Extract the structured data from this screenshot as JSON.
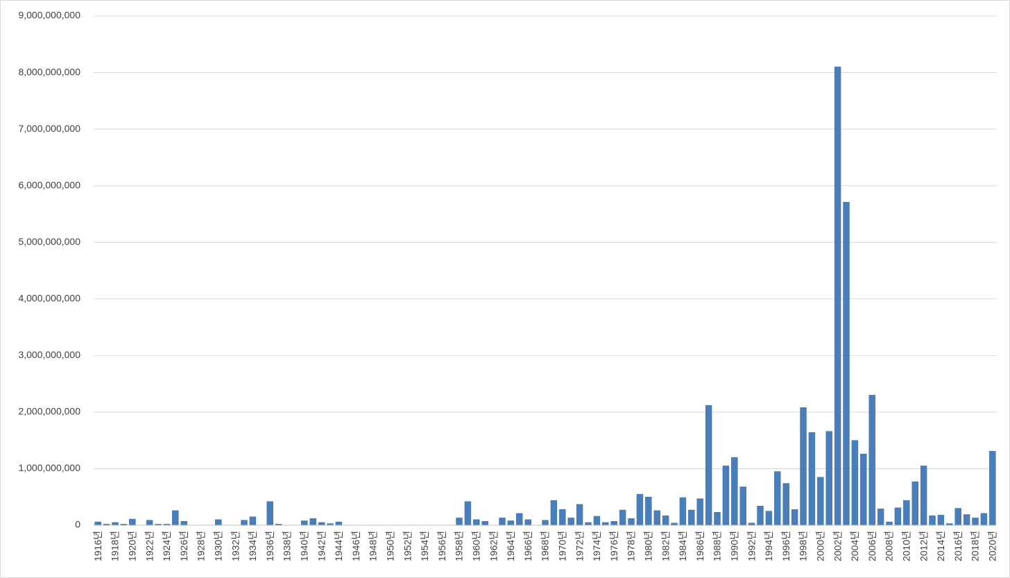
{
  "chart_data": {
    "type": "bar",
    "color": "#4a7ebb",
    "grid": true,
    "categories": [
      "1916년",
      null,
      "1918년",
      null,
      "1920년",
      null,
      "1922년",
      null,
      "1924년",
      null,
      "1926년",
      null,
      "1928년",
      null,
      "1930년",
      null,
      "1932년",
      null,
      "1934년",
      null,
      "1936년",
      null,
      "1938년",
      null,
      "1940년",
      null,
      "1942년",
      null,
      "1944년",
      null,
      "1946년",
      null,
      "1948년",
      null,
      "1950년",
      null,
      "1952년",
      null,
      "1954년",
      null,
      "1956년",
      null,
      "1958년",
      null,
      "1960년",
      null,
      "1962년",
      null,
      "1964년",
      null,
      "1966년",
      null,
      "1968년",
      null,
      "1970년",
      null,
      "1972년",
      null,
      "1974년",
      null,
      "1976년",
      null,
      "1978년",
      null,
      "1980년",
      null,
      "1982년",
      null,
      "1984년",
      null,
      "1986년",
      null,
      "1988년",
      null,
      "1990년",
      null,
      "1992년",
      null,
      "1994년",
      null,
      "1996년",
      null,
      "1998년",
      null,
      "2000년",
      null,
      "2002년",
      null,
      "2004년",
      null,
      "2006년",
      null,
      "2008년",
      null,
      "2010년",
      null,
      "2012년",
      null,
      "2014년",
      null,
      "2016년",
      null,
      "2018년",
      null,
      "2020년"
    ],
    "values": [
      60000000,
      20000000,
      50000000,
      20000000,
      110000000,
      0,
      90000000,
      20000000,
      20000000,
      260000000,
      70000000,
      0,
      0,
      0,
      100000000,
      0,
      0,
      90000000,
      150000000,
      0,
      420000000,
      20000000,
      0,
      0,
      80000000,
      120000000,
      50000000,
      30000000,
      60000000,
      0,
      0,
      0,
      0,
      0,
      0,
      0,
      0,
      0,
      0,
      0,
      0,
      0,
      130000000,
      420000000,
      100000000,
      70000000,
      0,
      130000000,
      80000000,
      210000000,
      100000000,
      0,
      90000000,
      440000000,
      280000000,
      130000000,
      370000000,
      50000000,
      160000000,
      50000000,
      70000000,
      270000000,
      120000000,
      550000000,
      500000000,
      260000000,
      170000000,
      40000000,
      490000000,
      270000000,
      470000000,
      2120000000,
      230000000,
      1050000000,
      1200000000,
      680000000,
      40000000,
      340000000,
      250000000,
      950000000,
      740000000,
      280000000,
      2080000000,
      1640000000,
      850000000,
      1660000000,
      8100000000,
      5710000000,
      1500000000,
      1260000000,
      2300000000,
      290000000,
      60000000,
      310000000,
      440000000,
      770000000,
      1050000000,
      170000000,
      180000000,
      30000000,
      300000000,
      190000000,
      130000000,
      210000000,
      1310000000
    ],
    "ylim": [
      0,
      9000000000
    ],
    "yticks": [
      0,
      {
        "value": 1000000000,
        "label": "1,000,000,000"
      },
      {
        "value": 2000000000,
        "label": "2,000,000,000"
      },
      {
        "value": 3000000000,
        "label": "3,000,000,000"
      },
      {
        "value": 4000000000,
        "label": "4,000,000,000"
      },
      {
        "value": 5000000000,
        "label": "5,000,000,000"
      },
      {
        "value": 6000000000,
        "label": "6,000,000,000"
      },
      {
        "value": 7000000000,
        "label": "7,000,000,000"
      },
      {
        "value": 8000000000,
        "label": "8,000,000,000"
      },
      {
        "value": 9000000000,
        "label": "9,000,000,000"
      }
    ]
  }
}
